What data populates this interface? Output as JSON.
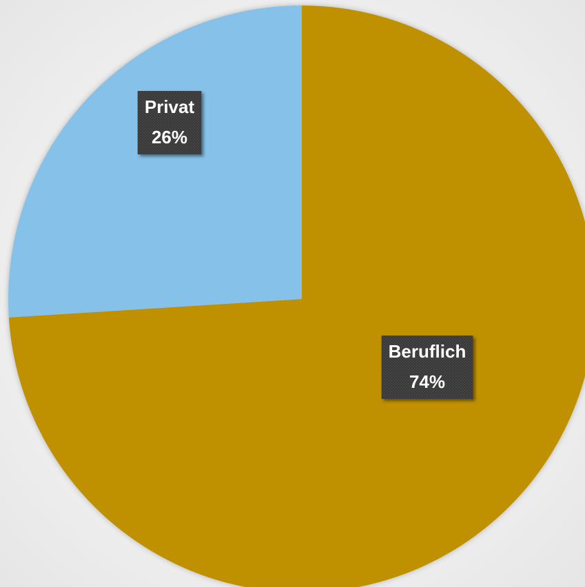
{
  "chart_data": {
    "type": "pie",
    "categories": [
      "Beruflich",
      "Privat"
    ],
    "values": [
      74,
      26
    ],
    "value_labels": [
      "74%",
      "26%"
    ],
    "colors": [
      "#bf9000",
      "#85c1e9"
    ]
  }
}
